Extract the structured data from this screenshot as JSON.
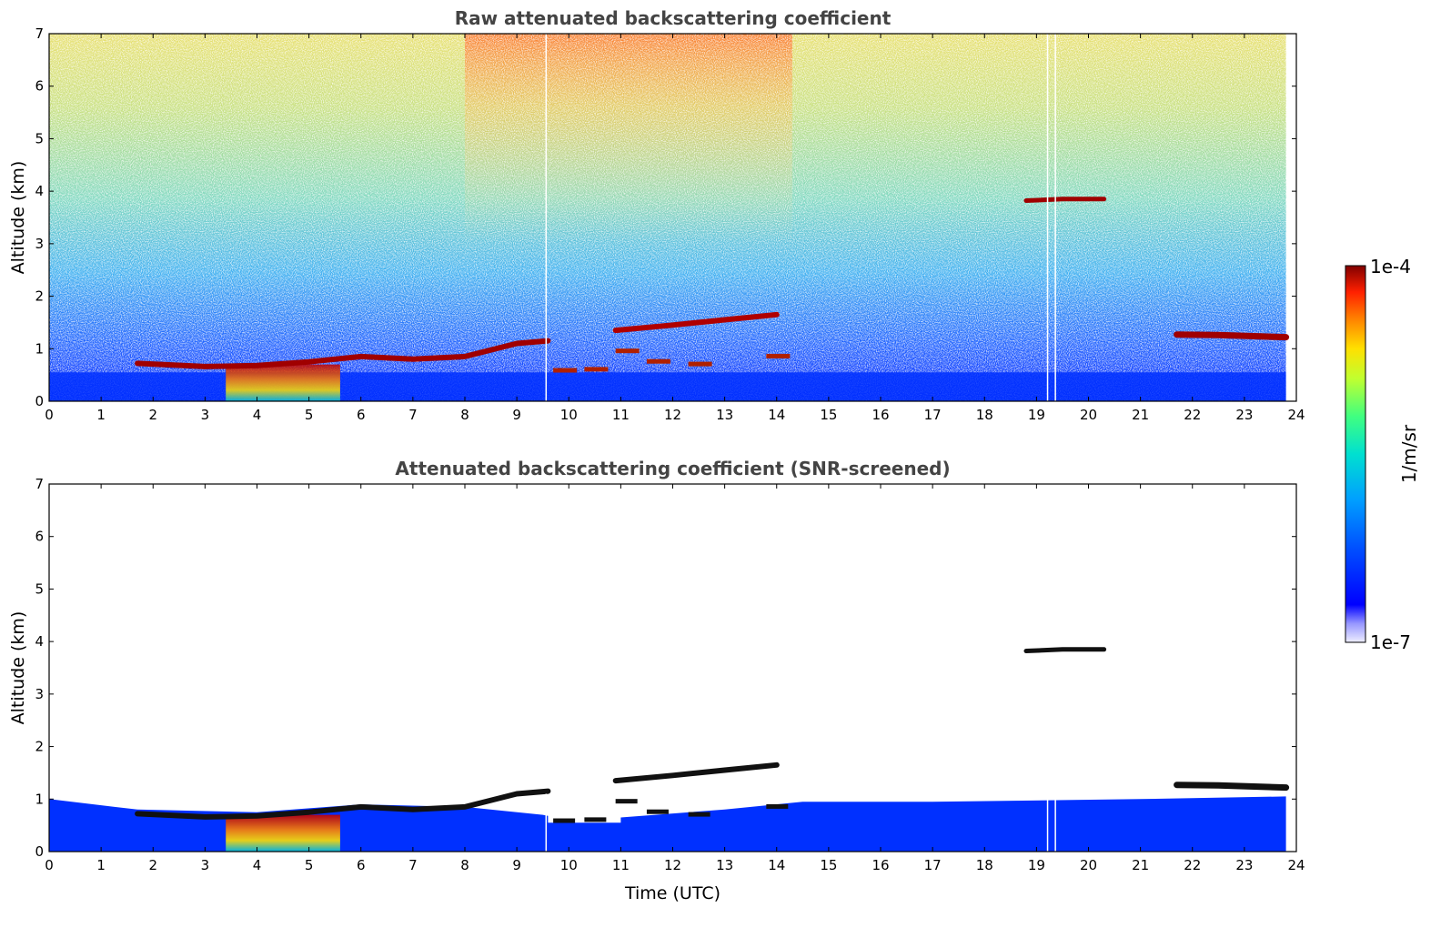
{
  "chart_data": [
    {
      "type": "heatmap",
      "title": "Raw attenuated backscattering coefficient",
      "xlabel": "",
      "ylabel": "Altitude (km)",
      "xlim": [
        0,
        24
      ],
      "ylim": [
        0,
        7
      ],
      "x_ticks": [
        "0",
        "1",
        "2",
        "3",
        "4",
        "5",
        "6",
        "7",
        "8",
        "9",
        "10",
        "11",
        "12",
        "13",
        "14",
        "15",
        "16",
        "17",
        "18",
        "19",
        "20",
        "21",
        "22",
        "23",
        "24"
      ],
      "y_ticks": [
        "0",
        "1",
        "2",
        "3",
        "4",
        "5",
        "6",
        "7"
      ],
      "features": {
        "boundary_layer": [
          [
            1.7,
            0.72
          ],
          [
            3,
            0.66
          ],
          [
            4,
            0.68
          ],
          [
            5,
            0.75
          ],
          [
            6,
            0.85
          ],
          [
            7,
            0.8
          ],
          [
            8,
            0.85
          ],
          [
            9,
            1.1
          ],
          [
            9.6,
            1.15
          ]
        ],
        "mid_cloud": [
          [
            10.9,
            1.35
          ],
          [
            12,
            1.45
          ],
          [
            13,
            1.55
          ],
          [
            14,
            1.65
          ]
        ],
        "low_cloud_fragments": [
          [
            9.7,
            0.58
          ],
          [
            10.3,
            0.6
          ],
          [
            10.9,
            0.95
          ],
          [
            11.5,
            0.75
          ],
          [
            12.3,
            0.7
          ],
          [
            13.8,
            0.85
          ]
        ],
        "high_cloud": [
          [
            18.8,
            3.82
          ],
          [
            19.5,
            3.85
          ],
          [
            20.3,
            3.85
          ]
        ],
        "late_layer": [
          [
            21.7,
            1.27
          ],
          [
            22.5,
            1.26
          ],
          [
            23.8,
            1.22
          ]
        ],
        "gaps": [
          9.55,
          19.2,
          19.35
        ]
      }
    },
    {
      "type": "heatmap",
      "title": "Attenuated backscattering coefficient (SNR-screened)",
      "xlabel": "Time (UTC)",
      "ylabel": "Altitude (km)",
      "xlim": [
        0,
        24
      ],
      "ylim": [
        0,
        7
      ],
      "x_ticks": [
        "0",
        "1",
        "2",
        "3",
        "4",
        "5",
        "6",
        "7",
        "8",
        "9",
        "10",
        "11",
        "12",
        "13",
        "14",
        "15",
        "16",
        "17",
        "18",
        "19",
        "20",
        "21",
        "22",
        "23",
        "24"
      ],
      "y_ticks": [
        "0",
        "1",
        "2",
        "3",
        "4",
        "5",
        "6",
        "7"
      ]
    }
  ],
  "colorbar": {
    "label": "1/m/sr",
    "max_label": "1e-4",
    "min_label": "1e-7",
    "scale": "log",
    "colormap": [
      "#eeeeff",
      "#c8c8ff",
      "#9696ff",
      "#0000ff",
      "#0050ff",
      "#00a0ff",
      "#00e0e0",
      "#40ff80",
      "#c0ff30",
      "#ffe000",
      "#ff8000",
      "#ff2000",
      "#c00000",
      "#800000"
    ]
  }
}
